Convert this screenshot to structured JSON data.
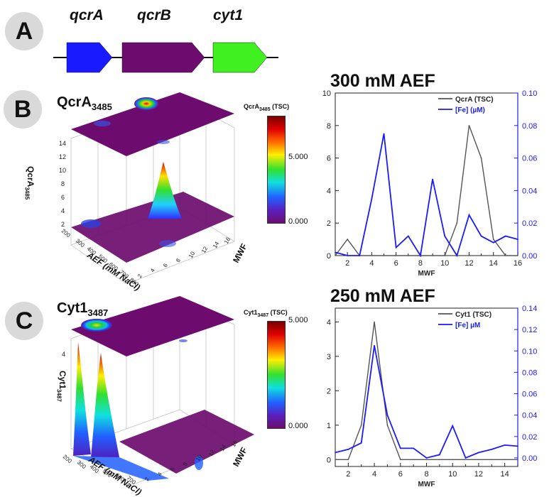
{
  "panels": {
    "a": "A",
    "b": "B",
    "c": "C"
  },
  "genes": [
    {
      "name": "qcrA",
      "color": "#1a1aff"
    },
    {
      "name": "qcrB",
      "color": "#6d0c6e"
    },
    {
      "name": "cyt1",
      "color": "#40f020"
    }
  ],
  "panel_b_3d": {
    "title_main": "QcrA",
    "title_sub": "3485",
    "colorbar_label_main": "QcrA",
    "colorbar_label_sub": "3485",
    "colorbar_label_suffix": " (TSC)",
    "colorbar_max": "5.000",
    "colorbar_min": "0.000",
    "z_label_main": "QcrA",
    "z_label_sub": "3485",
    "x_label": "AEF (mM NaCl)",
    "y_label": "MWF",
    "z_ticks": [
      "14",
      "12",
      "10",
      "8",
      "6",
      "4",
      "2"
    ],
    "x_ticks": [
      "200",
      "300",
      "400",
      "500",
      "600",
      "700",
      "800"
    ],
    "y_ticks": [
      "2",
      "4",
      "6",
      "8",
      "10",
      "12",
      "14",
      "16"
    ]
  },
  "panel_c_3d": {
    "title_main": "Cyt1",
    "title_sub": "3487",
    "colorbar_label_main": "Cyt1",
    "colorbar_label_sub": "3487",
    "colorbar_label_suffix": " (TSC)",
    "colorbar_max": "5.000",
    "colorbar_min": "0.000",
    "z_label_main": "Cyt1",
    "z_label_sub": "3487",
    "x_label": "AEF (mM NaCl)",
    "y_label": "MWF",
    "z_ticks": [
      "4"
    ],
    "x_ticks": [
      "200",
      "300",
      "400",
      "500",
      "600",
      "700"
    ],
    "y_ticks": [
      "2",
      "4",
      "6",
      "8",
      "10",
      "12",
      "14",
      "16"
    ]
  },
  "chart_data": [
    {
      "type": "line",
      "title": "300 mM AEF",
      "xlabel": "MWF",
      "xlim": [
        1,
        16
      ],
      "x_ticks": [
        2,
        4,
        6,
        8,
        10,
        12,
        14,
        16
      ],
      "ylim_left": [
        0,
        10
      ],
      "y_ticks_left": [
        0,
        2,
        4,
        6,
        8,
        10
      ],
      "ylim_right": [
        0,
        0.1
      ],
      "y_ticks_right": [
        "0.00",
        "0.02",
        "0.04",
        "0.06",
        "0.08",
        "0.10"
      ],
      "legend_position": "top-right",
      "series": [
        {
          "name": "QcrA (TSC)",
          "axis": "left",
          "color": "#555555",
          "x": [
            1,
            2,
            3,
            4,
            5,
            6,
            7,
            8,
            9,
            10,
            11,
            12,
            13,
            14,
            15,
            16
          ],
          "y": [
            0,
            1,
            0,
            0,
            0,
            0,
            0,
            0,
            0,
            0,
            2,
            8,
            6,
            1,
            0,
            0
          ]
        },
        {
          "name": "[Fe] (µM)",
          "axis": "right",
          "color": "#1a1aff",
          "x": [
            1,
            2,
            3,
            4,
            5,
            6,
            7,
            8,
            9,
            10,
            11,
            12,
            13,
            14,
            15,
            16
          ],
          "y": [
            0.002,
            0,
            0,
            0.035,
            0.075,
            0.005,
            0.012,
            0,
            0.047,
            0.012,
            0,
            0.025,
            0.012,
            0.008,
            0.012,
            0.01
          ]
        }
      ]
    },
    {
      "type": "line",
      "title": "250 mM AEF",
      "xlabel": "MWF",
      "xlim": [
        1,
        15
      ],
      "x_ticks": [
        2,
        4,
        6,
        8,
        10,
        12,
        14
      ],
      "ylim_left": [
        -0.2,
        4.4
      ],
      "y_ticks_left": [
        0,
        1,
        2,
        3,
        4
      ],
      "ylim_right": [
        -0.008,
        0.14
      ],
      "y_ticks_right": [
        "0.00",
        "0.02",
        "0.04",
        "0.06",
        "0.08",
        "0.10",
        "0.12",
        "0.14"
      ],
      "legend_position": "top-right",
      "series": [
        {
          "name": "Cyt1 (TSC)",
          "axis": "left",
          "color": "#555555",
          "x": [
            1,
            2,
            3,
            4,
            5,
            6,
            7,
            8,
            9,
            10,
            11,
            12,
            13,
            14,
            15
          ],
          "y": [
            0,
            0,
            1,
            4,
            1,
            0,
            0,
            0,
            0,
            0,
            0,
            0,
            0,
            0,
            0
          ]
        },
        {
          "name": "[Fe] µM",
          "axis": "right",
          "color": "#1a1aff",
          "x": [
            1,
            2,
            3,
            4,
            5,
            6,
            7,
            8,
            9,
            10,
            11,
            12,
            13,
            14,
            15
          ],
          "y": [
            0.005,
            0.008,
            0.014,
            0.105,
            0.04,
            0.009,
            0.009,
            0,
            0.003,
            0.03,
            0,
            0.005,
            0.008,
            0.012,
            0.011
          ]
        }
      ]
    }
  ]
}
